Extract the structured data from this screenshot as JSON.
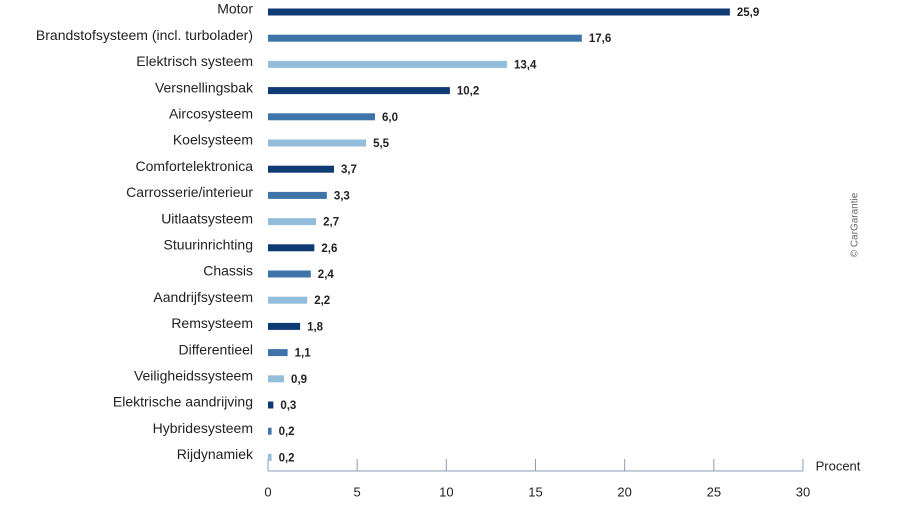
{
  "chart_data": {
    "type": "hbar",
    "categories": [
      "Motor",
      "Brandstofsysteem (incl. turbolader)",
      "Elektrisch systeem",
      "Versnellingsbak",
      "Aircosysteem",
      "Koelsysteem",
      "Comfortelektronica",
      "Carrosserie/interieur",
      "Uitlaatsysteem",
      "Stuurinrichting",
      "Chassis",
      "Aandrijfsysteem",
      "Remsysteem",
      "Differentieel",
      "Veiligheidssysteem",
      "Elektrische aandrijving",
      "Hybridesysteem",
      "Rijdynamiek"
    ],
    "values": [
      25.9,
      17.6,
      13.4,
      10.2,
      6.0,
      5.5,
      3.7,
      3.3,
      2.7,
      2.6,
      2.4,
      2.2,
      1.8,
      1.1,
      0.9,
      0.3,
      0.2,
      0.2
    ],
    "value_labels": [
      "25,9",
      "17,6",
      "13,4",
      "10,2",
      "6,0",
      "5,5",
      "3,7",
      "3,3",
      "2,7",
      "2,6",
      "2,4",
      "2,2",
      "1,8",
      "1,1",
      "0,9",
      "0,3",
      "0,2",
      "0,2"
    ],
    "colors": [
      "#0f3b74",
      "#3f74a8",
      "#94bddc",
      "#0f3b74",
      "#3f74a8",
      "#94bddc",
      "#0f3b74",
      "#3f74a8",
      "#94bddc",
      "#0f3b74",
      "#3f74a8",
      "#94bddc",
      "#0f3b74",
      "#3f74a8",
      "#94bddc",
      "#0f3b74",
      "#3f74a8",
      "#94bddc"
    ],
    "xlim": [
      0,
      30
    ],
    "xticks": [
      0,
      5,
      10,
      15,
      20,
      25,
      30
    ],
    "xlabel": "Procent",
    "credit": "© CarGarantie"
  }
}
